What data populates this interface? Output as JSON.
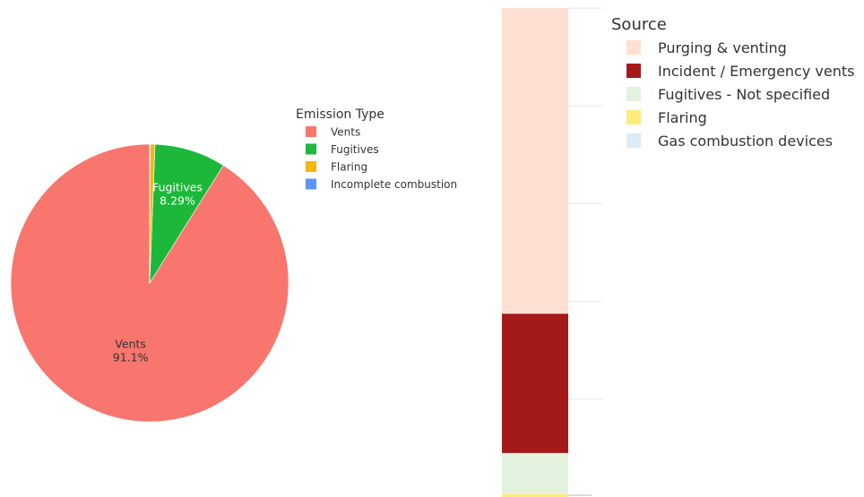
{
  "chart_data": [
    {
      "type": "pie",
      "legend_title": "Emission Type",
      "legend_position": "right",
      "slices": [
        {
          "label": "Vents",
          "value": 91.1,
          "color": "#F8766D",
          "shown_label": "Vents",
          "shown_pct": "91.1%",
          "label_color": "#333333"
        },
        {
          "label": "Fugitives",
          "value": 8.29,
          "color": "#1DB83A",
          "shown_label": "Fugitives",
          "shown_pct": "8.29%",
          "label_color": "#ffffff"
        },
        {
          "label": "Flaring",
          "value": 0.55,
          "color": "#F5B70B",
          "shown_label": "",
          "shown_pct": ""
        },
        {
          "label": "Incomplete combustion",
          "value": 0.06,
          "color": "#5B95F8",
          "shown_label": "",
          "shown_pct": ""
        }
      ],
      "start_angle_deg": 0,
      "direction": "counterclockwise"
    },
    {
      "type": "bar",
      "stacked": true,
      "legend_title": "Source",
      "legend_position": "right",
      "gridlines": true,
      "y_range": [
        0,
        100
      ],
      "segments": [
        {
          "name": "Flaring",
          "value": 0.6,
          "color": "#FDEB7A"
        },
        {
          "name": "Fugitives - Not specified",
          "value": 8.4,
          "color": "#E3F2DF"
        },
        {
          "name": "Incident / Emergency vents",
          "value": 28.5,
          "color": "#A41A1A"
        },
        {
          "name": "Purging & venting",
          "value": 62.5,
          "color": "#FDE0D2"
        }
      ],
      "legend_items": [
        {
          "name": "Purging & venting",
          "color": "#FDE0D2"
        },
        {
          "name": "Incident / Emergency vents",
          "color": "#A41A1A"
        },
        {
          "name": "Fugitives - Not specified",
          "color": "#E3F2DF"
        },
        {
          "name": "Flaring",
          "color": "#FDEB7A"
        },
        {
          "name": "Gas combustion devices",
          "color": "#DDEBF8"
        }
      ]
    }
  ]
}
